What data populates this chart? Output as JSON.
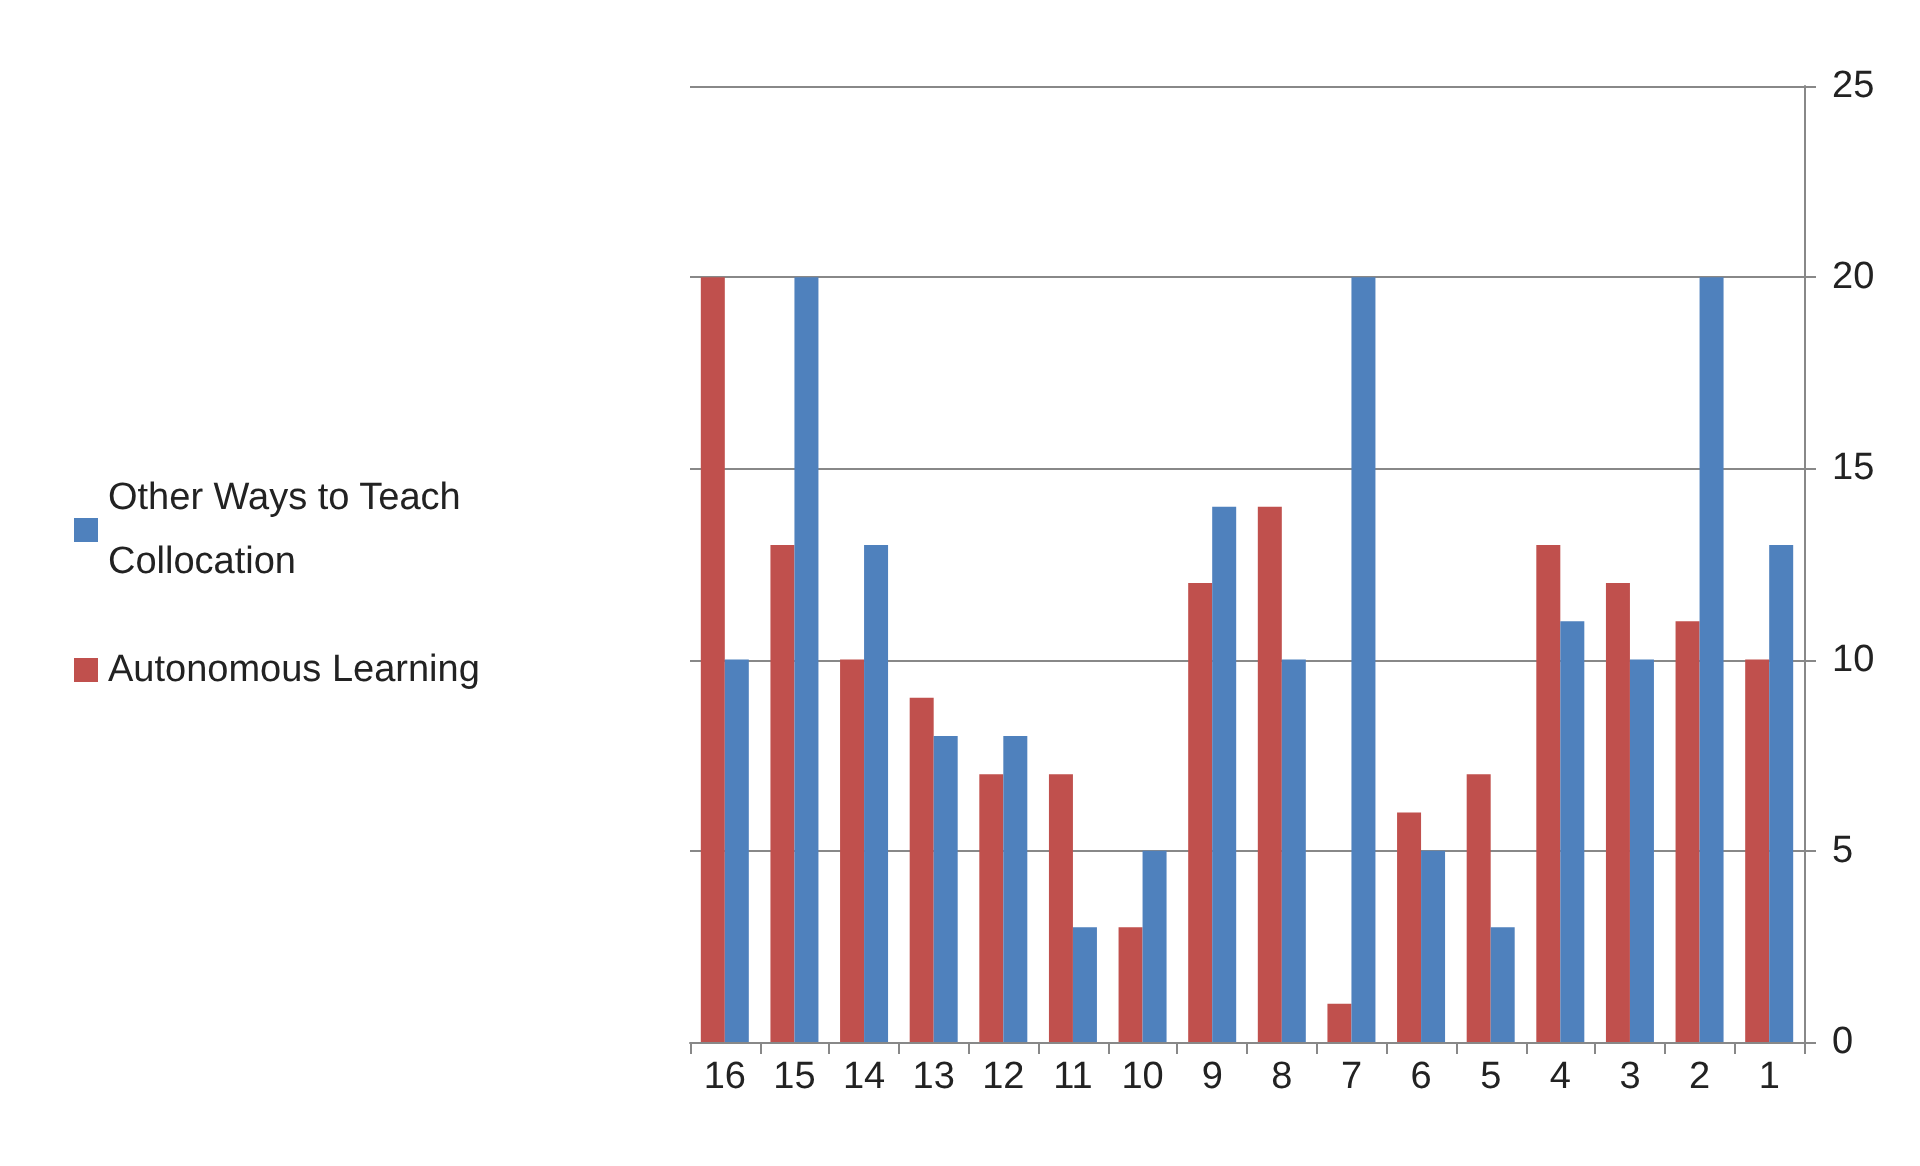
{
  "chart_data": {
    "type": "bar",
    "categories": [
      "16",
      "15",
      "14",
      "13",
      "12",
      "11",
      "10",
      "9",
      "8",
      "7",
      "6",
      "5",
      "4",
      "3",
      "2",
      "1"
    ],
    "series": [
      {
        "name": "Autonomous Learning",
        "color": "#c0504d",
        "values": [
          20,
          13,
          10,
          9,
          7,
          7,
          3,
          12,
          14,
          1,
          6,
          7,
          13,
          12,
          11,
          10
        ]
      },
      {
        "name": "Other Ways to Teach Collocation",
        "color": "#4f81bd",
        "values": [
          10,
          20,
          13,
          8,
          8,
          3,
          5,
          14,
          10,
          20,
          5,
          3,
          11,
          10,
          20,
          13
        ]
      }
    ],
    "ylim": [
      0,
      25
    ],
    "yticks": [
      0,
      5,
      10,
      15,
      20,
      25
    ],
    "grid": "y",
    "legend": "left"
  }
}
